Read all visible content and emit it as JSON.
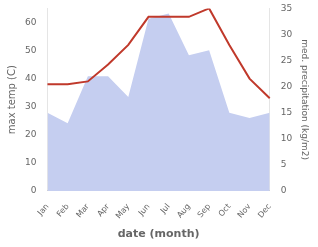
{
  "chart_data": {
    "type": "line",
    "categories": [
      "Jan",
      "Feb",
      "Mar",
      "Apr",
      "May",
      "Jun",
      "Jul",
      "Aug",
      "Sep",
      "Oct",
      "Nov",
      "Dec"
    ],
    "xlabel": "date (month)",
    "ylabel": "max temp (C)",
    "y2label": "med. precipitation (kg/m2)",
    "series": [
      {
        "type": "area",
        "color": "#c5cef0",
        "axis": "y2",
        "values": [
          15,
          13,
          22,
          22,
          18,
          33,
          34,
          26,
          27,
          15,
          14,
          15
        ]
      },
      {
        "type": "line",
        "color": "#c0392b",
        "values": [
          38,
          38,
          39,
          45,
          52,
          62,
          62,
          62,
          65,
          52,
          40,
          33
        ]
      }
    ],
    "ylim": [
      0,
      65
    ],
    "yticks": [
      0,
      10,
      20,
      30,
      40,
      50,
      60
    ],
    "y2lim": [
      0,
      35
    ],
    "y2ticks": [
      0,
      5,
      10,
      15,
      20,
      25,
      30,
      35
    ],
    "grid": false
  }
}
